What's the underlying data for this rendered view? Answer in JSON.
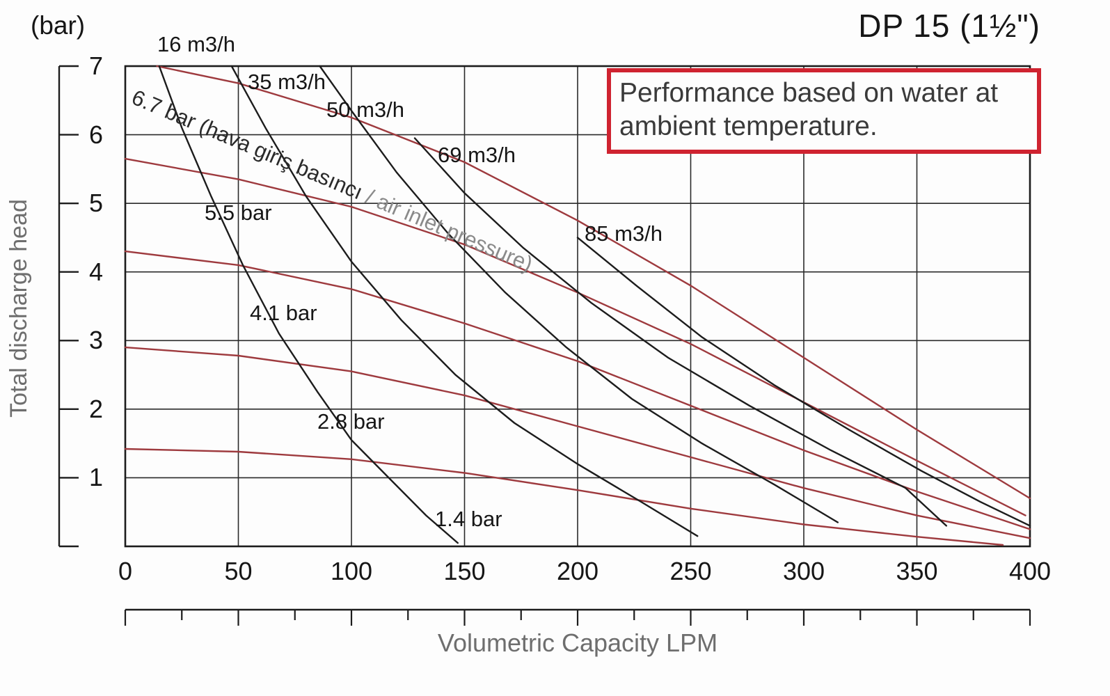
{
  "chart_data": {
    "type": "line",
    "title": "DP 15 (1½\")",
    "unit_label": "(bar)",
    "ylabel": "Total discharge head",
    "xlabel": "Volumetric Capacity LPM",
    "note": "Performance based on water at ambient temperature.",
    "xlim": [
      0,
      400
    ],
    "ylim": [
      0,
      7
    ],
    "xticks": [
      0,
      50,
      100,
      150,
      200,
      250,
      300,
      350,
      400
    ],
    "yticks": [
      1,
      2,
      3,
      4,
      5,
      6,
      7
    ],
    "minor_tick_step": 25,
    "grid": true,
    "legend_position": "none",
    "colors": {
      "axis": "#1c1c1c",
      "grid": "#2a2a2a",
      "curve_red": "#9e3a3e",
      "curve_black": "#1c1c1c",
      "note_border": "#cf2330",
      "muted_text": "#6e6e6e"
    },
    "series": [
      {
        "name": "6.7 bar air inlet pressure",
        "color": "#9e3a3e",
        "points": [
          [
            14,
            7.0
          ],
          [
            50,
            6.75
          ],
          [
            100,
            6.25
          ],
          [
            150,
            5.6
          ],
          [
            200,
            4.75
          ],
          [
            250,
            3.8
          ],
          [
            300,
            2.75
          ],
          [
            350,
            1.7
          ],
          [
            400,
            0.7
          ]
        ]
      },
      {
        "name": "5.5 bar air inlet pressure",
        "color": "#9e3a3e",
        "points": [
          [
            0,
            5.65
          ],
          [
            50,
            5.35
          ],
          [
            100,
            4.95
          ],
          [
            150,
            4.4
          ],
          [
            200,
            3.7
          ],
          [
            250,
            2.95
          ],
          [
            300,
            2.1
          ],
          [
            350,
            1.25
          ],
          [
            398,
            0.45
          ]
        ]
      },
      {
        "name": "4.1 bar air inlet pressure",
        "color": "#9e3a3e",
        "points": [
          [
            0,
            4.3
          ],
          [
            50,
            4.1
          ],
          [
            100,
            3.75
          ],
          [
            150,
            3.25
          ],
          [
            200,
            2.7
          ],
          [
            250,
            2.05
          ],
          [
            300,
            1.4
          ],
          [
            350,
            0.8
          ],
          [
            400,
            0.25
          ]
        ]
      },
      {
        "name": "2.8 bar air inlet pressure",
        "color": "#9e3a3e",
        "points": [
          [
            0,
            2.9
          ],
          [
            50,
            2.78
          ],
          [
            100,
            2.55
          ],
          [
            150,
            2.2
          ],
          [
            200,
            1.75
          ],
          [
            250,
            1.3
          ],
          [
            300,
            0.85
          ],
          [
            350,
            0.45
          ],
          [
            400,
            0.12
          ]
        ]
      },
      {
        "name": "1.4 bar air inlet pressure",
        "color": "#9e3a3e",
        "points": [
          [
            0,
            1.42
          ],
          [
            50,
            1.38
          ],
          [
            100,
            1.27
          ],
          [
            150,
            1.07
          ],
          [
            200,
            0.82
          ],
          [
            250,
            0.55
          ],
          [
            300,
            0.32
          ],
          [
            350,
            0.14
          ],
          [
            388,
            0.02
          ]
        ]
      },
      {
        "name": "16 m3/h air consumption",
        "color": "#1c1c1c",
        "points": [
          [
            15,
            7.0
          ],
          [
            25,
            6.1
          ],
          [
            38,
            5.1
          ],
          [
            52,
            4.1
          ],
          [
            68,
            3.1
          ],
          [
            85,
            2.25
          ],
          [
            100,
            1.55
          ],
          [
            118,
            0.95
          ],
          [
            133,
            0.45
          ],
          [
            147,
            0.05
          ]
        ]
      },
      {
        "name": "35 m3/h air consumption",
        "color": "#1c1c1c",
        "points": [
          [
            47,
            7.0
          ],
          [
            62,
            6.1
          ],
          [
            80,
            5.1
          ],
          [
            100,
            4.15
          ],
          [
            122,
            3.3
          ],
          [
            146,
            2.5
          ],
          [
            172,
            1.8
          ],
          [
            200,
            1.2
          ],
          [
            228,
            0.65
          ],
          [
            253,
            0.15
          ]
        ]
      },
      {
        "name": "50 m3/h air consumption",
        "color": "#1c1c1c",
        "points": [
          [
            86,
            7.0
          ],
          [
            100,
            6.35
          ],
          [
            120,
            5.45
          ],
          [
            143,
            4.55
          ],
          [
            168,
            3.7
          ],
          [
            195,
            2.9
          ],
          [
            224,
            2.15
          ],
          [
            255,
            1.5
          ],
          [
            287,
            0.9
          ],
          [
            315,
            0.35
          ]
        ]
      },
      {
        "name": "69 m3/h air consumption",
        "color": "#1c1c1c",
        "points": [
          [
            128,
            5.95
          ],
          [
            150,
            5.15
          ],
          [
            176,
            4.35
          ],
          [
            206,
            3.55
          ],
          [
            240,
            2.75
          ],
          [
            276,
            2.05
          ],
          [
            312,
            1.4
          ],
          [
            345,
            0.85
          ],
          [
            363,
            0.3
          ]
        ]
      },
      {
        "name": "85 m3/h air consumption",
        "color": "#1c1c1c",
        "points": [
          [
            200,
            4.5
          ],
          [
            226,
            3.8
          ],
          [
            255,
            3.05
          ],
          [
            287,
            2.35
          ],
          [
            320,
            1.7
          ],
          [
            352,
            1.1
          ],
          [
            378,
            0.65
          ],
          [
            400,
            0.3
          ]
        ]
      }
    ],
    "annotations": [
      {
        "text": "16 m3/h",
        "x": 14,
        "y": 7.5,
        "rotate": 0,
        "color": "#161616"
      },
      {
        "text": "35 m3/h",
        "x": 54,
        "y": 6.95,
        "rotate": 0,
        "color": "#161616"
      },
      {
        "text": "50 m3/h",
        "x": 89,
        "y": 6.54,
        "rotate": 0,
        "color": "#161616"
      },
      {
        "text": "69 m3/h",
        "x": 138,
        "y": 5.88,
        "rotate": 0,
        "color": "#161616"
      },
      {
        "text": "85 m3/h",
        "x": 203,
        "y": 4.74,
        "rotate": 0,
        "color": "#161616"
      },
      {
        "text": "5.5 bar",
        "x": 35,
        "y": 5.04,
        "rotate": 0,
        "color": "#161616"
      },
      {
        "text": "4.1 bar",
        "x": 55,
        "y": 3.58,
        "rotate": 0,
        "color": "#161616"
      },
      {
        "text": "2.8 bar",
        "x": 85,
        "y": 2.0,
        "rotate": 0,
        "color": "#161616"
      },
      {
        "text": "1.4 bar",
        "x": 137,
        "y": 0.58,
        "rotate": 0,
        "color": "#161616"
      },
      {
        "x": 5.5,
        "y": 6.73,
        "rotate": 23,
        "parts": [
          {
            "text": "6.7 bar (hava giriş basıncı ",
            "color": "#2a2a2a"
          },
          {
            "text": "/ air inlet pressure)",
            "color": "#8a8a8a"
          }
        ]
      }
    ]
  }
}
